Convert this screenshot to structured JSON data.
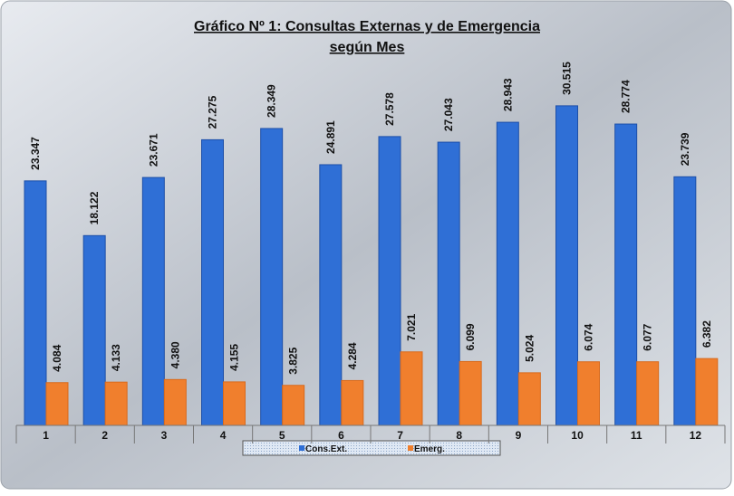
{
  "chart_data": {
    "type": "bar",
    "title": [
      "Gráfico Nº 1: Consultas Externas y de Emergencia",
      "según Mes"
    ],
    "categories": [
      "1",
      "2",
      "3",
      "4",
      "5",
      "6",
      "7",
      "8",
      "9",
      "10",
      "11",
      "12"
    ],
    "series": [
      {
        "name": "Cons.Ext.",
        "color": "#2f6fd6",
        "values": [
          23347,
          18122,
          23671,
          27275,
          28349,
          24891,
          27578,
          27043,
          28943,
          30515,
          28774,
          23739
        ],
        "value_labels": [
          "23.347",
          "18.122",
          "23.671",
          "27.275",
          "28.349",
          "24.891",
          "27.578",
          "27.043",
          "28.943",
          "30.515",
          "28.774",
          "23.739"
        ]
      },
      {
        "name": "Emerg.",
        "color": "#f07f2d",
        "values": [
          4084,
          4133,
          4380,
          4155,
          3825,
          4284,
          7021,
          6099,
          5024,
          6074,
          6077,
          6382
        ],
        "value_labels": [
          "4.084",
          "4.133",
          "4.380",
          "4.155",
          "3.825",
          "4.284",
          "7.021",
          "6.099",
          "5.024",
          "6.074",
          "6.077",
          "6.382"
        ]
      }
    ],
    "ylim": [
      0,
      35000
    ],
    "legend": "bottom"
  }
}
